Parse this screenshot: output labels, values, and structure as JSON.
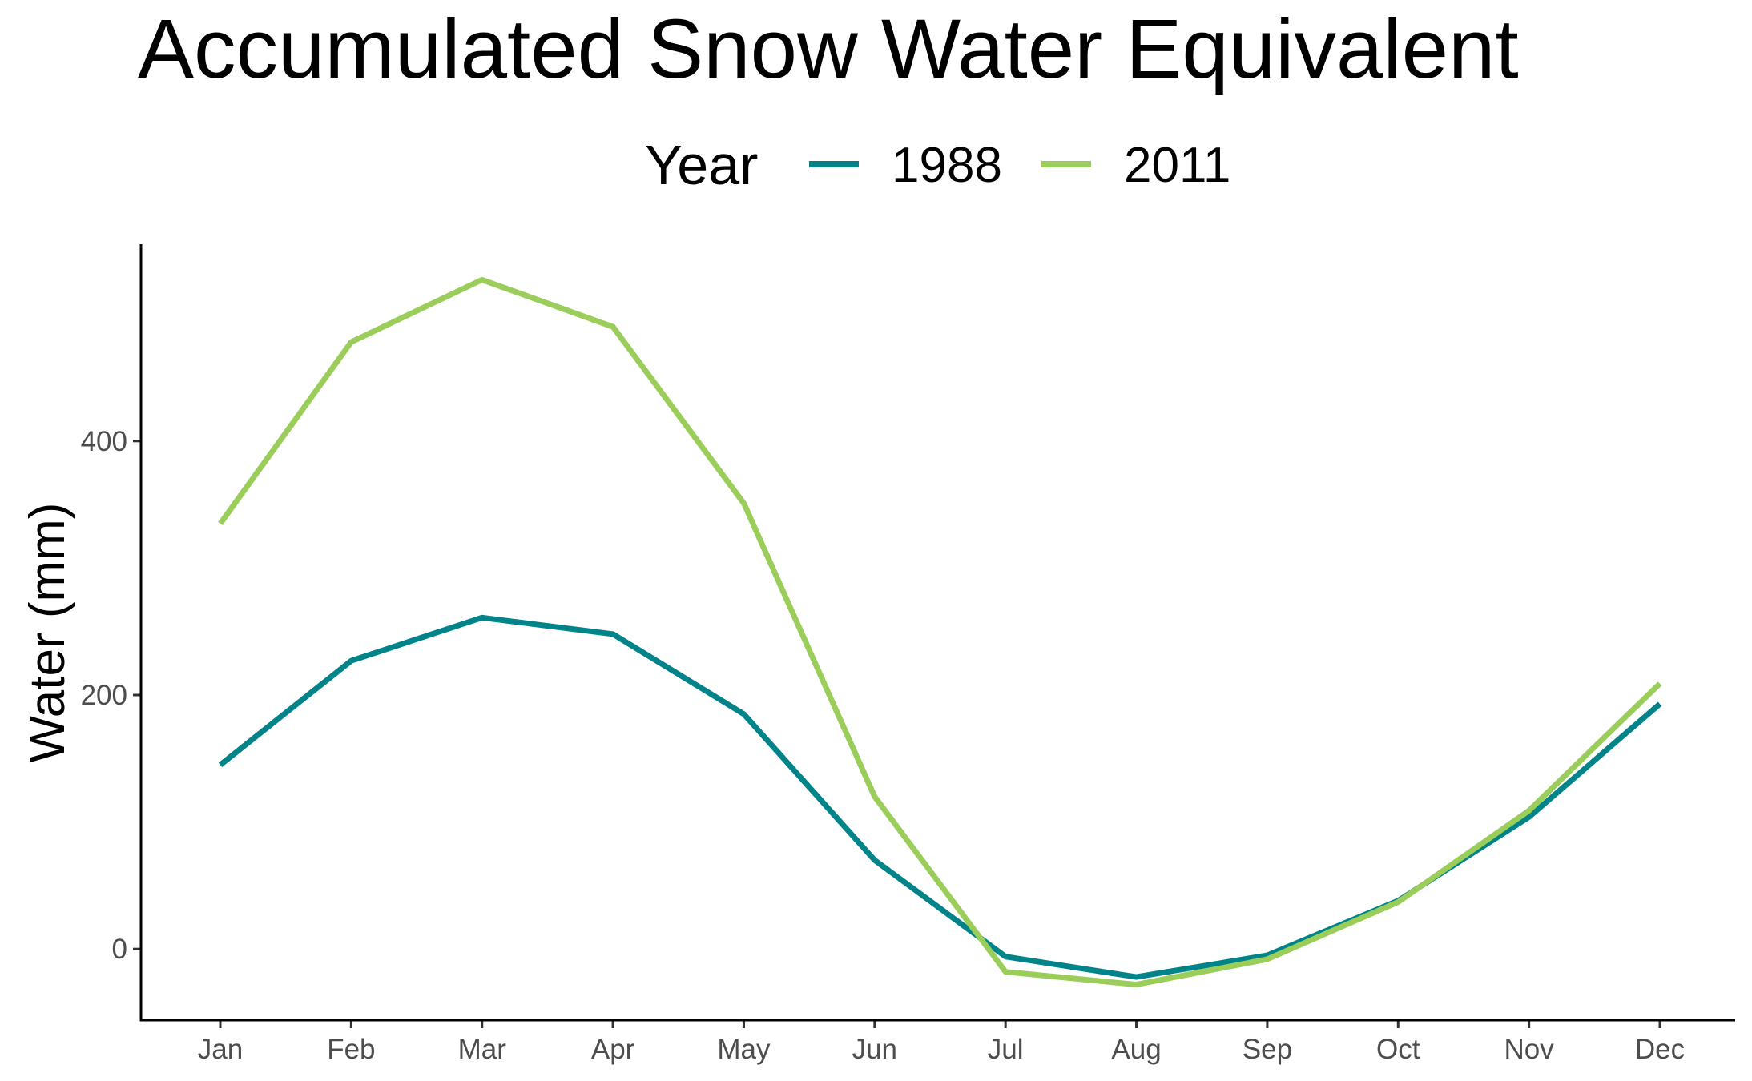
{
  "chart_data": {
    "type": "line",
    "title": "Accumulated Snow Water Equivalent",
    "xlabel": "",
    "ylabel": "Water (mm)",
    "categories": [
      "Jan",
      "Feb",
      "Mar",
      "Apr",
      "May",
      "Jun",
      "Jul",
      "Aug",
      "Sep",
      "Oct",
      "Nov",
      "Dec"
    ],
    "ylim": [
      -56,
      555
    ],
    "yticks": [
      0,
      200,
      400
    ],
    "grid": false,
    "legend": {
      "title": "Year",
      "placement": "top"
    },
    "series": [
      {
        "name": "1988",
        "color": "#008489",
        "values": [
          145,
          227,
          261,
          248,
          185,
          70,
          -6,
          -22,
          -5,
          38,
          104,
          193
        ]
      },
      {
        "name": "2011",
        "color": "#9ACD5A",
        "values": [
          335,
          478,
          527,
          490,
          351,
          120,
          -18,
          -28,
          -8,
          37,
          109,
          209
        ]
      }
    ]
  }
}
